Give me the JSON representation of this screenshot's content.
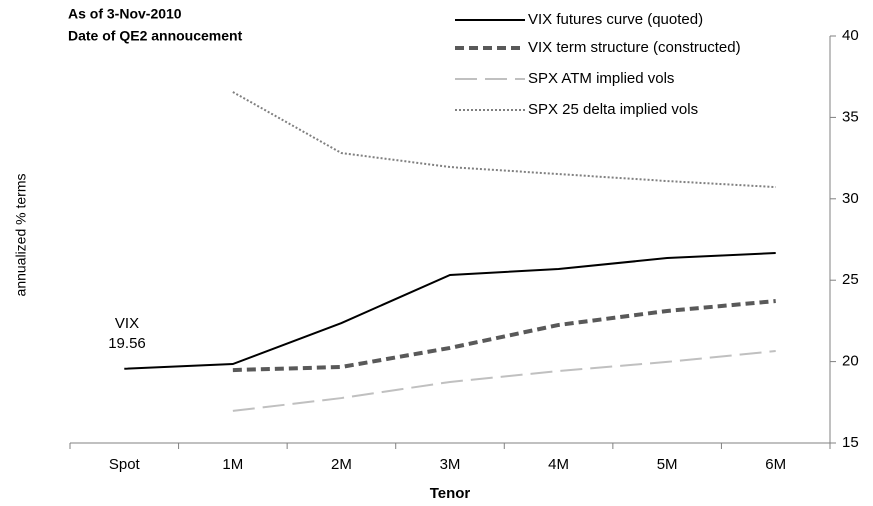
{
  "chart_data": {
    "type": "line",
    "title": [
      "As  of 3-Nov-2010",
      "Date of QE2 annoucement"
    ],
    "x_label": "Tenor",
    "y_label": "annualized  % terms",
    "annotation": [
      "VIX",
      "19.56"
    ],
    "categories": [
      "Spot",
      "1M",
      "2M",
      "3M",
      "4M",
      "5M",
      "6M"
    ],
    "series": [
      {
        "name": "VIX futures curve (quoted)",
        "color": "#000000",
        "style": "solid",
        "width": 2,
        "values": [
          19.56,
          19.85,
          22.37,
          25.32,
          25.69,
          26.36,
          26.67
        ]
      },
      {
        "name": "VIX term structure (constructed)",
        "color": "#595959",
        "style": "dashed",
        "width": 4,
        "values": [
          null,
          19.48,
          19.67,
          20.84,
          22.25,
          23.11,
          23.72
        ]
      },
      {
        "name": "SPX ATM implied vols",
        "color": "#c0c0c0",
        "style": "longdash",
        "width": 2,
        "values": [
          null,
          16.97,
          17.76,
          18.75,
          19.42,
          19.98,
          20.65
        ]
      },
      {
        "name": "SPX 25 delta implied vols",
        "color": "#808080",
        "style": "dotted",
        "width": 2,
        "values": [
          null,
          36.56,
          32.81,
          31.95,
          31.52,
          31.09,
          30.72
        ]
      }
    ],
    "ylim": [
      15,
      40
    ],
    "yticks": [
      15,
      20,
      25,
      30,
      35,
      40
    ],
    "y_axis_side": "right",
    "grid": false
  }
}
